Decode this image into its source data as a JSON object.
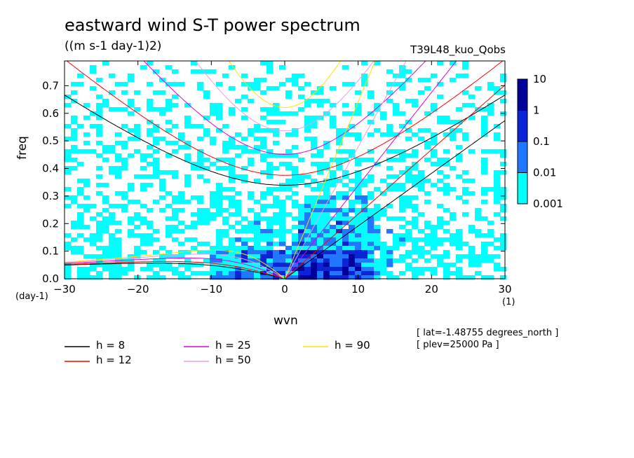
{
  "header": {
    "title": "eastward wind S-T power spectrum",
    "units": "((m s-1 day-1)2)",
    "run": "T39L48_kuo_Qobs"
  },
  "footer": {
    "info_lat": "[ lat=-1.48755 degrees_north ]",
    "info_plev": "[ plev=25000 Pa ]"
  },
  "chart_data": {
    "type": "heatmap",
    "xlabel": "wvn",
    "ylabel": "freq",
    "x_unit": "(1)",
    "y_unit": "(day-1)",
    "xlim": [
      -30,
      30
    ],
    "ylim": [
      0,
      0.79
    ],
    "x_ticks": [
      -30,
      -20,
      -10,
      0,
      10,
      20,
      30
    ],
    "y_ticks": [
      0.0,
      0.1,
      0.2,
      0.3,
      0.4,
      0.5,
      0.6,
      0.7
    ],
    "colorbar": {
      "levels": [
        "0.001",
        "0.01",
        "0.1",
        "1",
        "10"
      ],
      "colors": [
        "#00ffff",
        "#1f78ff",
        "#0a24d6",
        "#00009a"
      ]
    },
    "dispersion_curves": [
      {
        "name": "h =  8",
        "h": 8,
        "color": "#000000"
      },
      {
        "name": "h = 12",
        "h": 12,
        "color": "#ff0000"
      },
      {
        "name": "h = 25",
        "h": 25,
        "color": "#dd00dd"
      },
      {
        "name": "h = 50",
        "h": 50,
        "color": "#e6a0e6"
      },
      {
        "name": "h = 90",
        "h": 90,
        "color": "#ffe000"
      }
    ]
  }
}
